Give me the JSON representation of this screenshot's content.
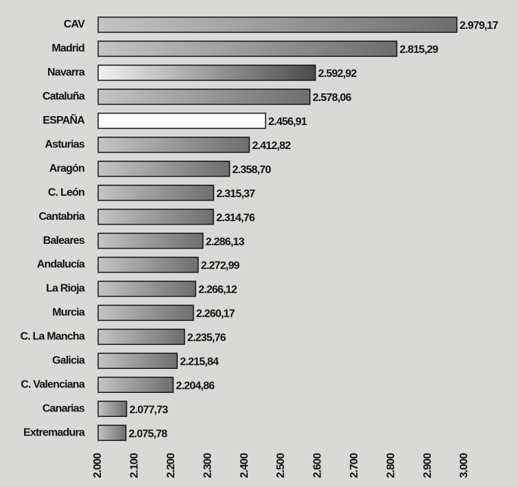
{
  "chart_data": {
    "type": "barh",
    "categories": [
      "CAV",
      "Madrid",
      "Navarra",
      "Cataluña",
      "ESPAÑA",
      "Asturias",
      "Aragón",
      "C. León",
      "Cantabria",
      "Baleares",
      "Andalucía",
      "La Rioja",
      "Murcia",
      "C. La Mancha",
      "Galicia",
      "C. Valenciana",
      "Canarias",
      "Extremadura"
    ],
    "values": [
      2979.17,
      2815.29,
      2592.92,
      2578.06,
      2456.91,
      2412.82,
      2358.7,
      2315.37,
      2314.76,
      2286.13,
      2272.99,
      2266.12,
      2260.17,
      2235.76,
      2215.84,
      2204.86,
      2077.73,
      2075.78
    ],
    "value_labels": [
      "2.979,17",
      "2.815,29",
      "2.592,92",
      "2.578,06",
      "2.456,91",
      "2.412,82",
      "2.358,70",
      "2.315,37",
      "2.314,76",
      "2.286,13",
      "2.272,99",
      "2.266,12",
      "2.260,17",
      "2.235,76",
      "2.215,84",
      "2.204,86",
      "2.077,73",
      "2.075,78"
    ],
    "colors": [
      "#6e6e6e",
      "#6e6e6e",
      "#4a4a4a",
      "#6e6e6e",
      "#ffffff",
      "#6e6e6e",
      "#6e6e6e",
      "#6e6e6e",
      "#6e6e6e",
      "#6e6e6e",
      "#6e6e6e",
      "#6e6e6e",
      "#6e6e6e",
      "#6e6e6e",
      "#6e6e6e",
      "#6e6e6e",
      "#6e6e6e",
      "#6e6e6e"
    ],
    "xlim": [
      2000,
      3000
    ],
    "xticks": [
      {
        "value": 2000,
        "label": "2.000"
      },
      {
        "value": 2100,
        "label": "2.100"
      },
      {
        "value": 2200,
        "label": "2.200"
      },
      {
        "value": 2300,
        "label": "2.300"
      },
      {
        "value": 2400,
        "label": "2.400"
      },
      {
        "value": 2500,
        "label": "2.500"
      },
      {
        "value": 2600,
        "label": "2.600"
      },
      {
        "value": 2700,
        "label": "2.700"
      },
      {
        "value": 2800,
        "label": "2.800"
      },
      {
        "value": 2900,
        "label": "2.900"
      },
      {
        "value": 3000,
        "label": "3.000"
      }
    ]
  }
}
